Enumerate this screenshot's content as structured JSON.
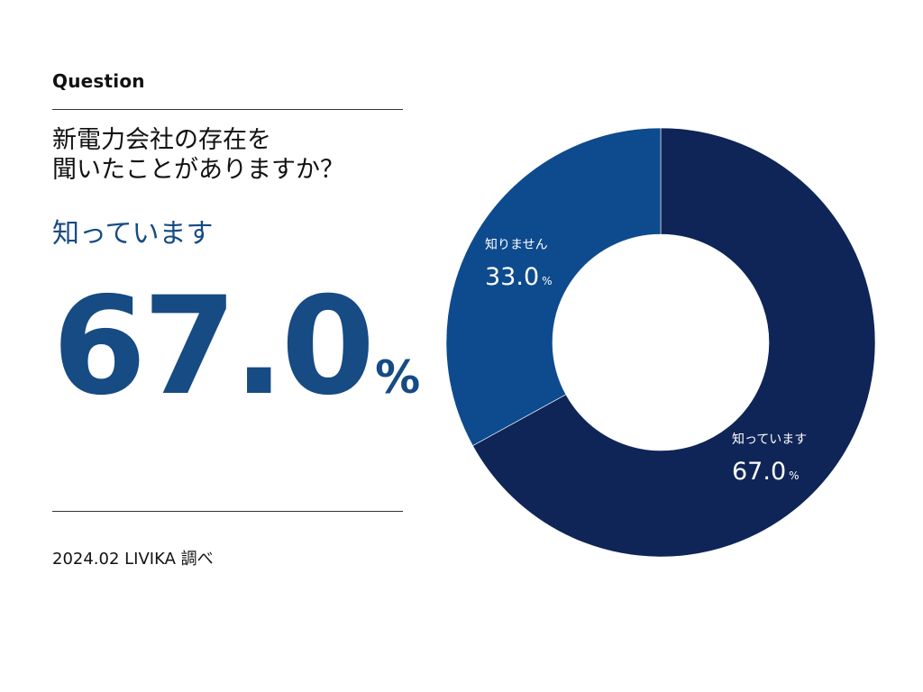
{
  "header": {
    "label": "Question",
    "question_line1": "新電力会社の存在を",
    "question_line2": "聞いたことがありますか？"
  },
  "highlight": {
    "label": "知っています",
    "value": "67.0",
    "unit": "%"
  },
  "footer": {
    "source": "2024.02 LIVIKA 調べ"
  },
  "colors": {
    "accent": "#164b84",
    "dark_segment": "#0f2557",
    "light_segment": "#0d4b8e"
  },
  "chart_data": {
    "type": "pie",
    "style": "donut",
    "categories": [
      "知っています",
      "知りません"
    ],
    "values": [
      67.0,
      33.0
    ],
    "labels": [
      "67.0",
      "33.0"
    ],
    "unit": "%",
    "colors": [
      "#0f2557",
      "#0d4b8e"
    ],
    "start": "12 o'clock",
    "direction": "clockwise"
  }
}
